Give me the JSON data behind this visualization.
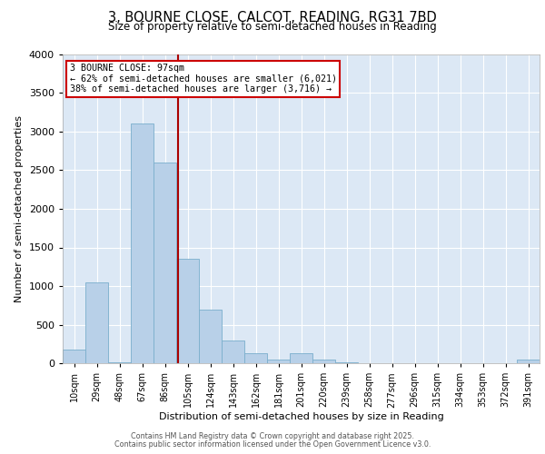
{
  "title_line1": "3, BOURNE CLOSE, CALCOT, READING, RG31 7BD",
  "title_line2": "Size of property relative to semi-detached houses in Reading",
  "xlabel": "Distribution of semi-detached houses by size in Reading",
  "ylabel": "Number of semi-detached properties",
  "categories": [
    "10sqm",
    "29sqm",
    "48sqm",
    "67sqm",
    "86sqm",
    "105sqm",
    "124sqm",
    "143sqm",
    "162sqm",
    "181sqm",
    "201sqm",
    "220sqm",
    "239sqm",
    "258sqm",
    "277sqm",
    "296sqm",
    "315sqm",
    "334sqm",
    "353sqm",
    "372sqm",
    "391sqm"
  ],
  "values": [
    180,
    1050,
    10,
    3100,
    2600,
    1350,
    700,
    300,
    130,
    50,
    130,
    50,
    10,
    0,
    0,
    0,
    0,
    0,
    0,
    0,
    50
  ],
  "bar_color": "#b8d0e8",
  "bar_edge_color": "#7aaecc",
  "vline_color": "#aa0000",
  "annotation_title": "3 BOURNE CLOSE: 97sqm",
  "annotation_line1": "← 62% of semi-detached houses are smaller (6,021)",
  "annotation_line2": "38% of semi-detached houses are larger (3,716) →",
  "annotation_box_facecolor": "white",
  "annotation_box_edgecolor": "#cc0000",
  "ylim": [
    0,
    4000
  ],
  "yticks": [
    0,
    500,
    1000,
    1500,
    2000,
    2500,
    3000,
    3500,
    4000
  ],
  "background_color": "#dce8f5",
  "grid_color": "#ffffff",
  "fig_facecolor": "#ffffff",
  "footer_line1": "Contains HM Land Registry data © Crown copyright and database right 2025.",
  "footer_line2": "Contains public sector information licensed under the Open Government Licence v3.0."
}
